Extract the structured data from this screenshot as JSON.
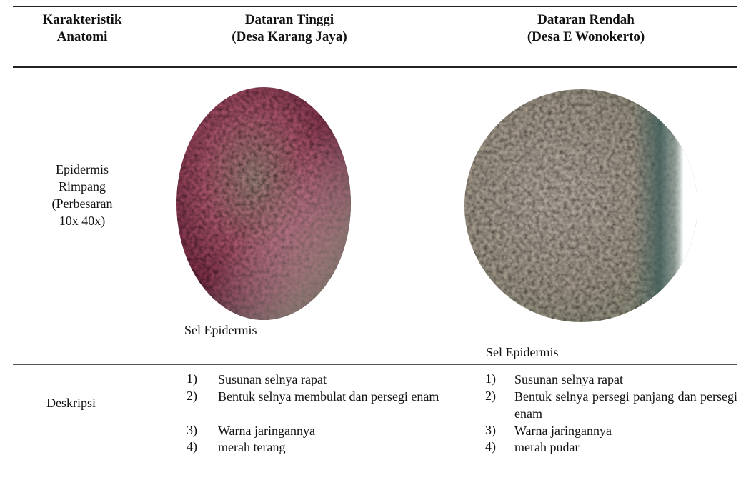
{
  "table": {
    "headers": [
      [
        "Karakteristik",
        "Anatomi"
      ],
      [
        "Dataran Tinggi",
        "(Desa Karang Jaya)"
      ],
      [
        "Dataran Rendah",
        "(Desa E Wonokerto)"
      ]
    ],
    "rows": [
      {
        "label": [
          "Epidermis",
          "Rimpang",
          "(Perbesaran",
          "10x 40x)"
        ],
        "captions": [
          "Sel Epidermis",
          "Sel Epidermis"
        ]
      },
      {
        "label": [
          "Deskripsi"
        ],
        "lists": [
          [
            {
              "marker": "1)",
              "text": "Susunan selnya rapat"
            },
            {
              "marker": "2)",
              "text": "Bentuk selnya membulat dan persegi enam"
            },
            {
              "marker": "3)",
              "text": "Warna jaringannya"
            },
            {
              "marker": "4)",
              "text": "merah terang"
            }
          ],
          [
            {
              "marker": "1)",
              "text": "Susunan selnya rapat"
            },
            {
              "marker": "2)",
              "text": "Bentuk selnya persegi panjang dan persegi enam"
            },
            {
              "marker": "3)",
              "text": "Warna jaringannya"
            },
            {
              "marker": "4)",
              "text": "merah pudar"
            }
          ]
        ]
      }
    ]
  }
}
